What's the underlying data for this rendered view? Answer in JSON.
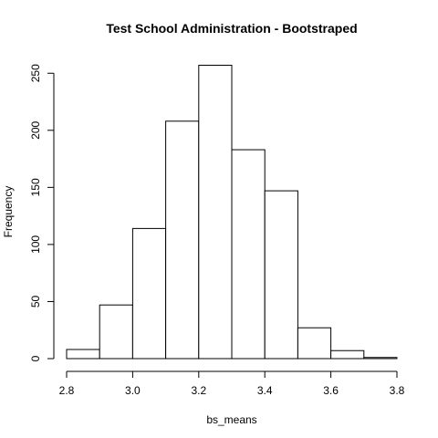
{
  "chart_data": {
    "type": "bar",
    "title": "Test School Administration - Bootstraped",
    "xlabel": "bs_means",
    "ylabel": "Frequency",
    "bins": [
      {
        "start": 2.8,
        "end": 2.9,
        "count": 8
      },
      {
        "start": 2.9,
        "end": 3.0,
        "count": 47
      },
      {
        "start": 3.0,
        "end": 3.1,
        "count": 114
      },
      {
        "start": 3.1,
        "end": 3.2,
        "count": 208
      },
      {
        "start": 3.2,
        "end": 3.3,
        "count": 257
      },
      {
        "start": 3.3,
        "end": 3.4,
        "count": 183
      },
      {
        "start": 3.4,
        "end": 3.5,
        "count": 147
      },
      {
        "start": 3.5,
        "end": 3.6,
        "count": 27
      },
      {
        "start": 3.6,
        "end": 3.7,
        "count": 7
      },
      {
        "start": 3.7,
        "end": 3.8,
        "count": 1
      }
    ],
    "xlim": [
      2.8,
      3.8
    ],
    "ylim": [
      0,
      257
    ],
    "x_ticks": [
      "2.8",
      "3.0",
      "3.2",
      "3.4",
      "3.6",
      "3.8"
    ],
    "y_ticks": [
      "0",
      "50",
      "100",
      "150",
      "200",
      "250"
    ],
    "grid": false,
    "bar_fill": "#ffffff",
    "bar_stroke": "#000000"
  }
}
